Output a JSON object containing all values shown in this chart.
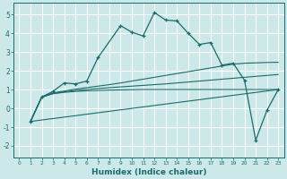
{
  "xlabel": "Humidex (Indice chaleur)",
  "bg_color": "#cce8e8",
  "grid_color": "#ffffff",
  "line_color": "#1a6b6b",
  "xlim": [
    -0.5,
    23.5
  ],
  "ylim": [
    -2.6,
    5.6
  ],
  "xticks": [
    0,
    1,
    2,
    3,
    4,
    5,
    6,
    7,
    8,
    9,
    10,
    11,
    12,
    13,
    14,
    15,
    16,
    17,
    18,
    19,
    20,
    21,
    22,
    23
  ],
  "yticks": [
    -2,
    -1,
    0,
    1,
    2,
    3,
    4,
    5
  ],
  "series1_x": [
    1,
    2,
    3,
    4,
    5,
    6,
    7,
    9,
    10,
    11,
    12,
    13,
    14,
    15,
    16,
    17,
    18,
    19,
    20,
    21,
    22,
    23
  ],
  "series1_y": [
    -0.7,
    0.6,
    0.9,
    1.35,
    1.3,
    1.45,
    2.7,
    4.4,
    4.05,
    3.85,
    5.1,
    4.7,
    4.65,
    4.0,
    3.4,
    3.5,
    2.3,
    2.4,
    1.5,
    -1.7,
    -0.1,
    1.0
  ],
  "line1_x": [
    1,
    23
  ],
  "line1_y": [
    -0.7,
    1.0
  ],
  "line2_x": [
    1,
    2,
    3,
    4,
    5,
    6,
    7,
    8,
    9,
    10,
    11,
    12,
    13,
    14,
    15,
    16,
    17,
    18,
    19,
    20,
    21,
    22,
    23
  ],
  "line2_y": [
    -0.7,
    0.6,
    0.78,
    0.88,
    0.95,
    1.0,
    1.05,
    1.1,
    1.14,
    1.18,
    1.22,
    1.26,
    1.3,
    1.35,
    1.4,
    1.45,
    1.5,
    1.55,
    1.6,
    1.65,
    1.7,
    1.75,
    1.8
  ],
  "line3_x": [
    1,
    2,
    3,
    4,
    5,
    6,
    7,
    8,
    9,
    10,
    11,
    12,
    13,
    14,
    15,
    16,
    17,
    18,
    19,
    20,
    21,
    22,
    23
  ],
  "line3_y": [
    -0.7,
    0.6,
    0.82,
    0.92,
    1.02,
    1.1,
    1.18,
    1.26,
    1.35,
    1.45,
    1.55,
    1.65,
    1.75,
    1.85,
    1.95,
    2.05,
    2.15,
    2.25,
    2.35,
    2.4,
    2.42,
    2.44,
    2.45
  ],
  "line4_x": [
    1,
    2,
    3,
    4,
    5,
    6,
    7,
    8,
    9,
    10,
    11,
    12,
    13,
    14,
    15,
    16,
    17,
    18,
    19,
    20,
    21,
    22,
    23
  ],
  "line4_y": [
    -0.7,
    0.6,
    0.78,
    0.85,
    0.9,
    0.93,
    0.95,
    0.97,
    0.98,
    0.99,
    1.0,
    1.0,
    1.0,
    1.0,
    1.0,
    1.0,
    1.0,
    1.0,
    1.0,
    1.0,
    1.0,
    1.0,
    1.0
  ]
}
